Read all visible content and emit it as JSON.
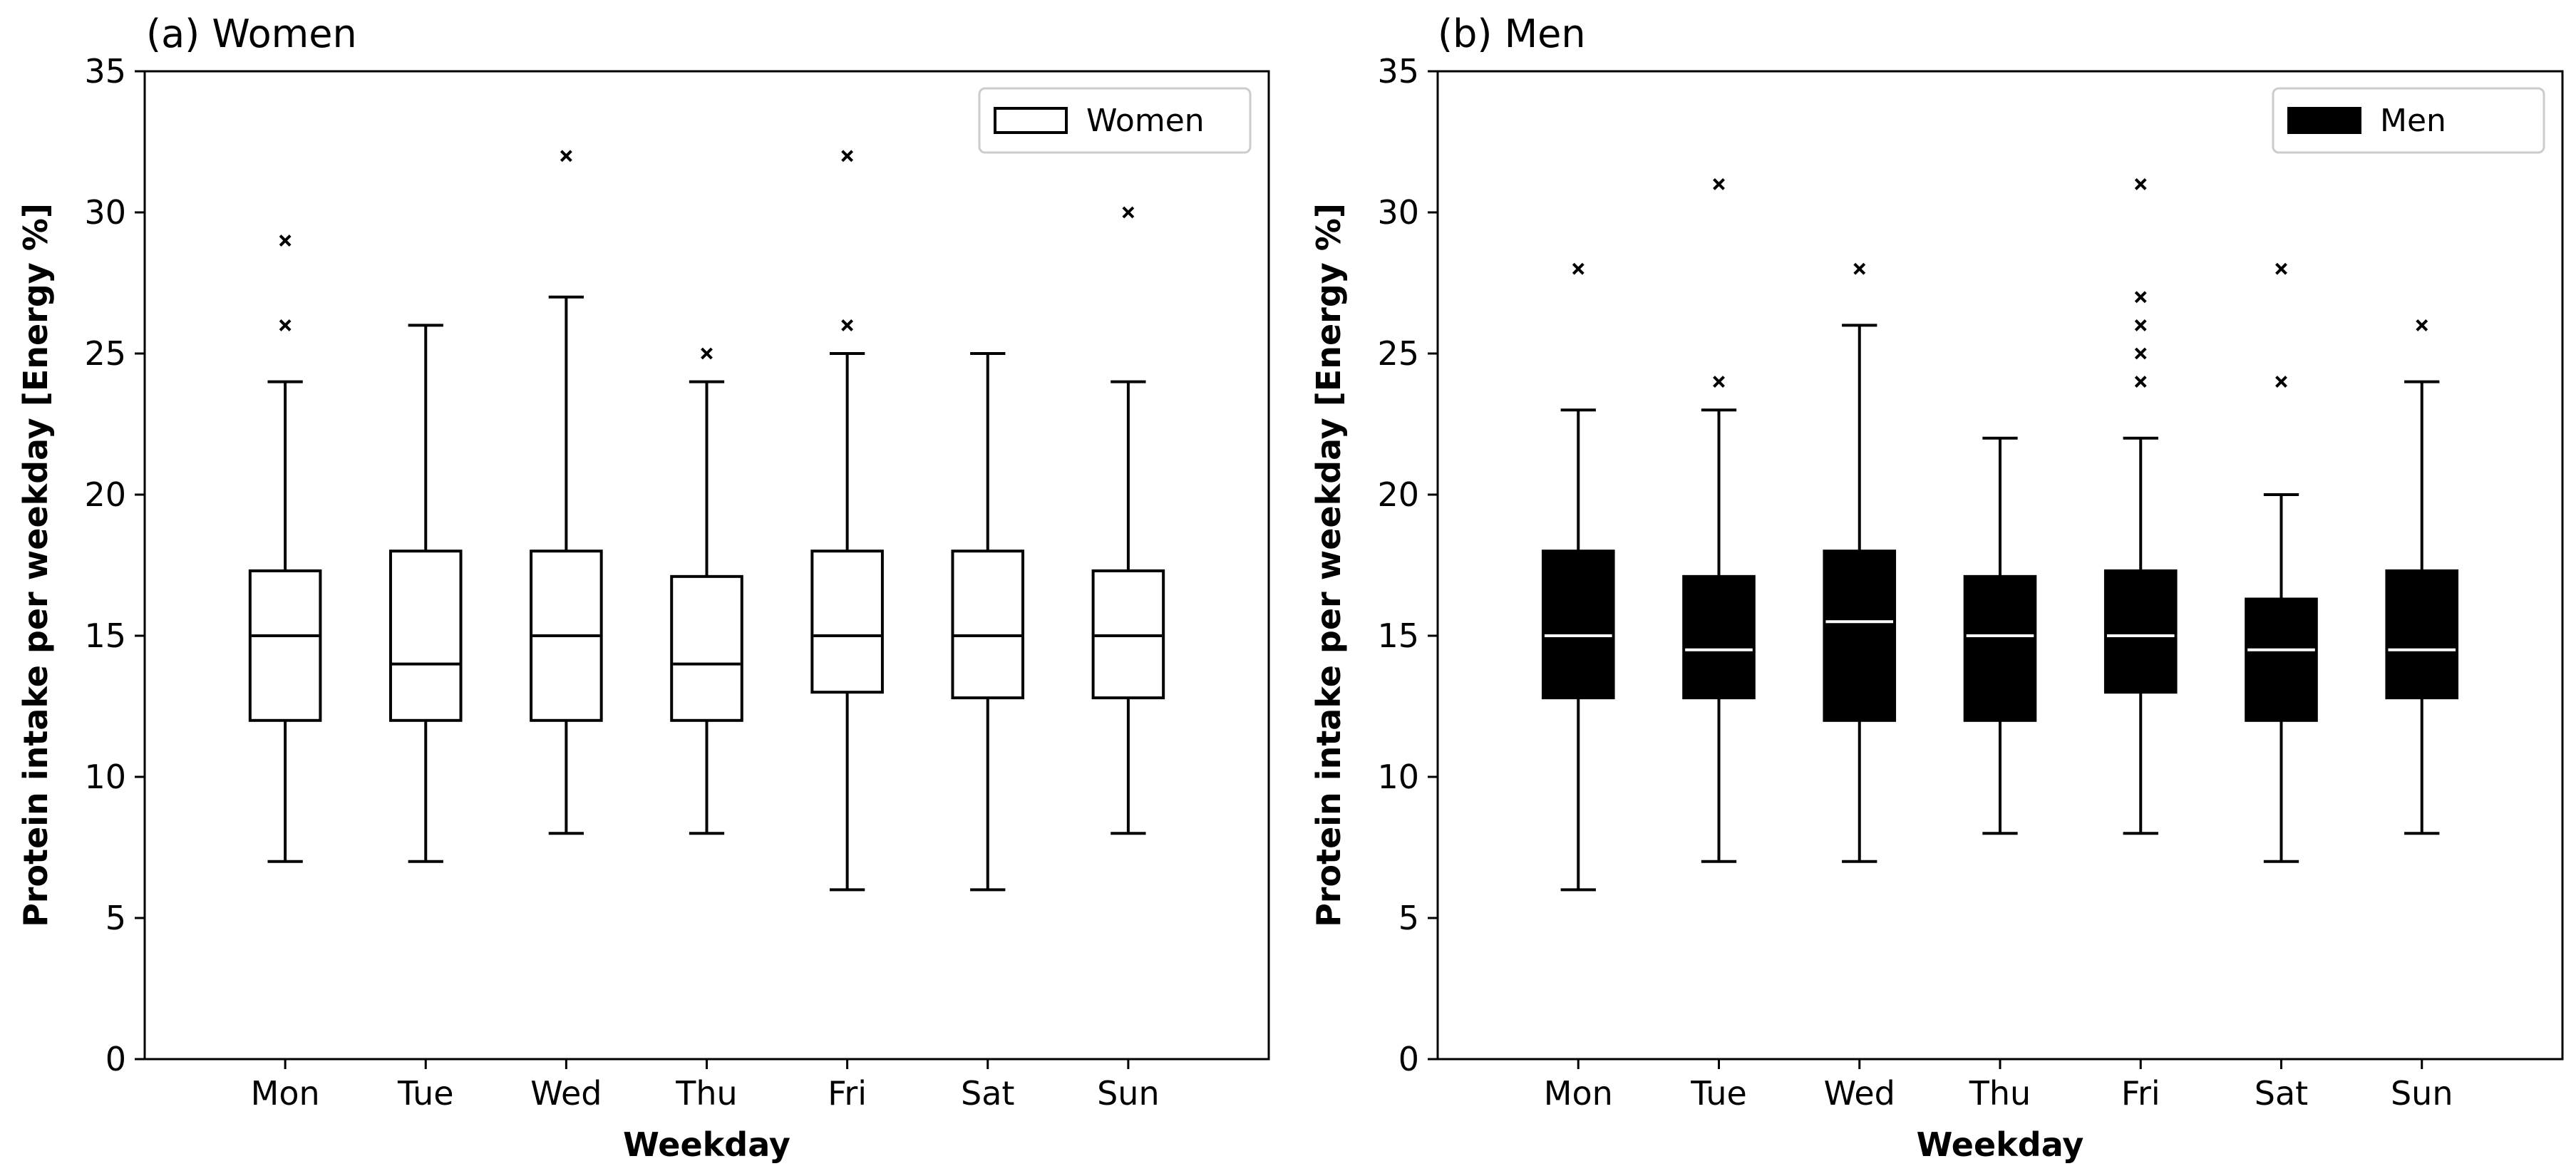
{
  "chart_data": [
    {
      "type": "box",
      "title": "(a) Women",
      "xlabel": "Weekday",
      "ylabel": "Protein intake per weekday [Energy %]",
      "ylim": [
        0,
        35
      ],
      "yticks": [
        0,
        5,
        10,
        15,
        20,
        25,
        30,
        35
      ],
      "categories": [
        "Mon",
        "Tue",
        "Wed",
        "Thu",
        "Fri",
        "Sat",
        "Sun"
      ],
      "legend": {
        "label": "Women",
        "position": "top-right"
      },
      "box_fill": "#ffffff",
      "box_edge": "#000000",
      "median_color": "#000000",
      "boxes": [
        {
          "min": 7,
          "q1": 12,
          "median": 15,
          "q3": 17.3,
          "max": 24,
          "outliers": [
            26,
            29
          ]
        },
        {
          "min": 7,
          "q1": 12,
          "median": 14,
          "q3": 18,
          "max": 26,
          "outliers": []
        },
        {
          "min": 8,
          "q1": 12,
          "median": 15,
          "q3": 18,
          "max": 27,
          "outliers": [
            32
          ]
        },
        {
          "min": 8,
          "q1": 12,
          "median": 14,
          "q3": 17.1,
          "max": 24,
          "outliers": [
            25
          ]
        },
        {
          "min": 6,
          "q1": 13,
          "median": 15,
          "q3": 18,
          "max": 25,
          "outliers": [
            26,
            32
          ]
        },
        {
          "min": 6,
          "q1": 12.8,
          "median": 15,
          "q3": 18,
          "max": 25,
          "outliers": []
        },
        {
          "min": 8,
          "q1": 12.8,
          "median": 15,
          "q3": 17.3,
          "max": 24,
          "outliers": [
            30
          ]
        }
      ]
    },
    {
      "type": "box",
      "title": "(b) Men",
      "xlabel": "Weekday",
      "ylabel": "Protein intake per weekday [Energy %]",
      "ylim": [
        0,
        35
      ],
      "yticks": [
        0,
        5,
        10,
        15,
        20,
        25,
        30,
        35
      ],
      "categories": [
        "Mon",
        "Tue",
        "Wed",
        "Thu",
        "Fri",
        "Sat",
        "Sun"
      ],
      "legend": {
        "label": "Men",
        "position": "top-right"
      },
      "box_fill": "#000000",
      "box_edge": "#000000",
      "median_color": "#ffffff",
      "boxes": [
        {
          "min": 6,
          "q1": 12.8,
          "median": 15,
          "q3": 18,
          "max": 23,
          "outliers": [
            28
          ]
        },
        {
          "min": 7,
          "q1": 12.8,
          "median": 14.5,
          "q3": 17.1,
          "max": 23,
          "outliers": [
            24,
            31
          ]
        },
        {
          "min": 7,
          "q1": 12,
          "median": 15.5,
          "q3": 18,
          "max": 26,
          "outliers": [
            28
          ]
        },
        {
          "min": 8,
          "q1": 12,
          "median": 15,
          "q3": 17.1,
          "max": 22,
          "outliers": []
        },
        {
          "min": 8,
          "q1": 13,
          "median": 15,
          "q3": 17.3,
          "max": 22,
          "outliers": [
            24,
            25,
            26,
            27,
            31
          ]
        },
        {
          "min": 7,
          "q1": 12,
          "median": 14.5,
          "q3": 16.3,
          "max": 20,
          "outliers": [
            24,
            28
          ]
        },
        {
          "min": 8,
          "q1": 12.8,
          "median": 14.5,
          "q3": 17.3,
          "max": 24,
          "outliers": [
            26
          ]
        }
      ]
    }
  ]
}
